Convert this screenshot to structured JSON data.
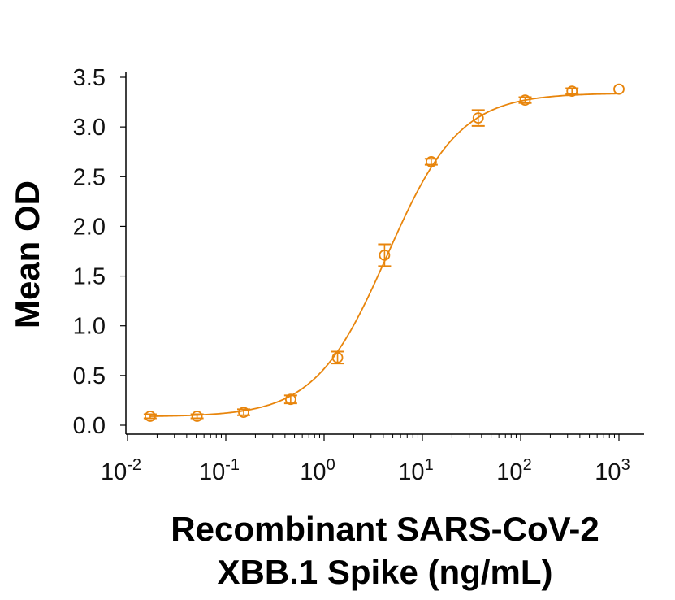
{
  "chart_data": {
    "type": "scatter",
    "title": "",
    "xlabel_lines": [
      "Recombinant SARS-CoV-2",
      "XBB.1 Spike (ng/mL)"
    ],
    "ylabel": "Mean OD",
    "x_scale": "log",
    "xlim": [
      0.01,
      1000
    ],
    "ylim": [
      0,
      3.5
    ],
    "grid": false,
    "legend": "none",
    "color": "#E8850C",
    "x_ticks": [
      {
        "base": "10",
        "exp": "-2",
        "value": 0.01
      },
      {
        "base": "10",
        "exp": "-1",
        "value": 0.1
      },
      {
        "base": "10",
        "exp": "0",
        "value": 1
      },
      {
        "base": "10",
        "exp": "1",
        "value": 10
      },
      {
        "base": "10",
        "exp": "2",
        "value": 100
      },
      {
        "base": "10",
        "exp": "3",
        "value": 1000
      }
    ],
    "y_ticks": [
      "0.0",
      "0.5",
      "1.0",
      "1.5",
      "2.0",
      "2.5",
      "3.0",
      "3.5"
    ],
    "series": [
      {
        "name": "Mean OD",
        "points": [
          {
            "x": 0.017,
            "y": 0.09,
            "err": 0.02
          },
          {
            "x": 0.051,
            "y": 0.09,
            "err": 0.02
          },
          {
            "x": 0.152,
            "y": 0.13,
            "err": 0.03
          },
          {
            "x": 0.457,
            "y": 0.26,
            "err": 0.04
          },
          {
            "x": 1.37,
            "y": 0.68,
            "err": 0.06
          },
          {
            "x": 4.12,
            "y": 1.71,
            "err": 0.11
          },
          {
            "x": 12.3,
            "y": 2.65,
            "err": 0.03
          },
          {
            "x": 37.0,
            "y": 3.09,
            "err": 0.08
          },
          {
            "x": 111,
            "y": 3.27,
            "err": 0.03
          },
          {
            "x": 333,
            "y": 3.36,
            "err": 0.03
          },
          {
            "x": 1000,
            "y": 3.38,
            "err": 0.0
          }
        ]
      }
    ],
    "fit": {
      "model": "4PL",
      "bottom": 0.085,
      "top": 3.34,
      "ec50": 4.4,
      "hill": 1.18
    }
  }
}
